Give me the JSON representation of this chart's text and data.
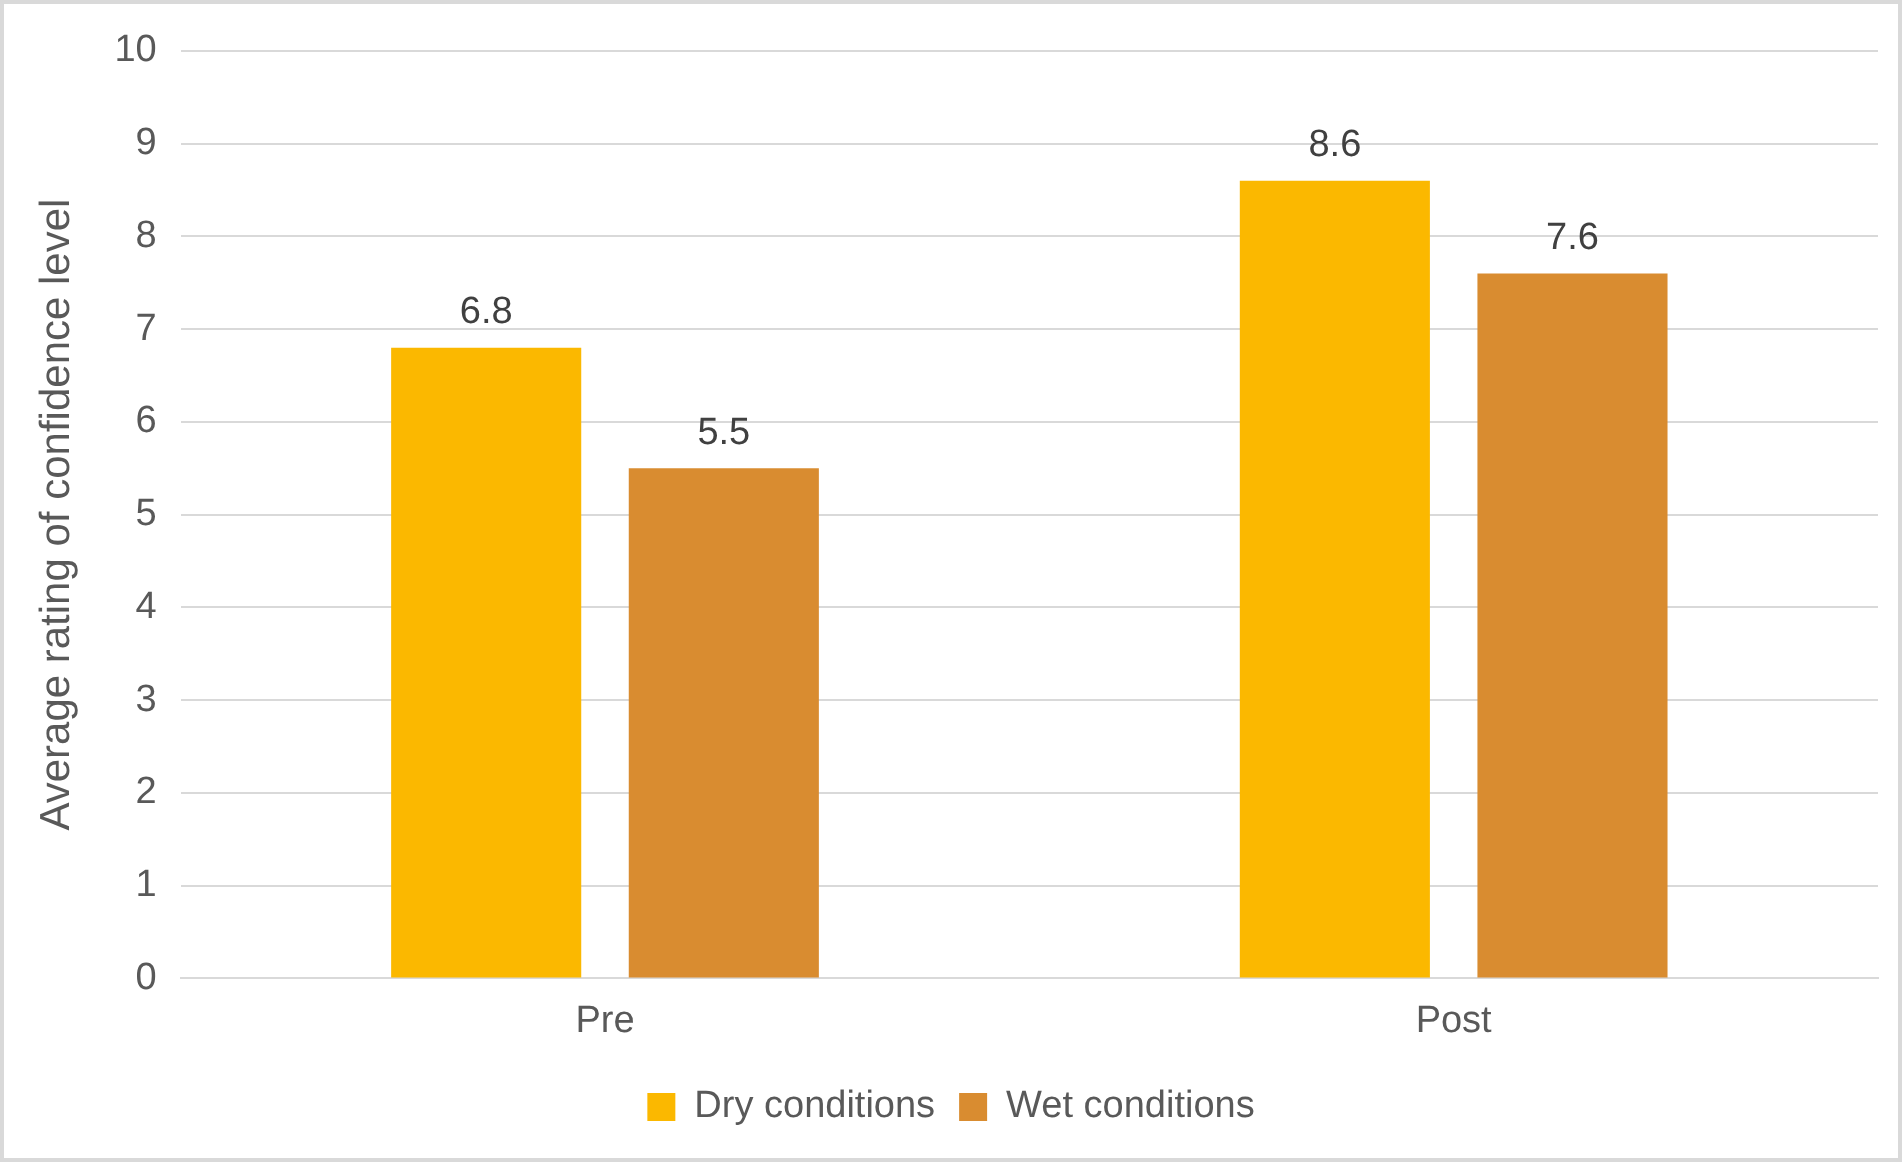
{
  "chart_data": {
    "type": "bar",
    "ylabel": "Average rating of confidence level",
    "categories": [
      "Pre",
      "Post"
    ],
    "series": [
      {
        "name": "Dry conditions",
        "color": "#fbb800",
        "values": [
          6.8,
          8.6
        ]
      },
      {
        "name": "Wet conditions",
        "color": "#d98c30",
        "values": [
          5.5,
          7.6
        ]
      }
    ],
    "ylim": [
      0,
      10
    ],
    "yticks": [
      0,
      1,
      2,
      3,
      4,
      5,
      6,
      7,
      8,
      9,
      10
    ],
    "grid": "y",
    "legend": "bottom",
    "data_labels": true
  }
}
